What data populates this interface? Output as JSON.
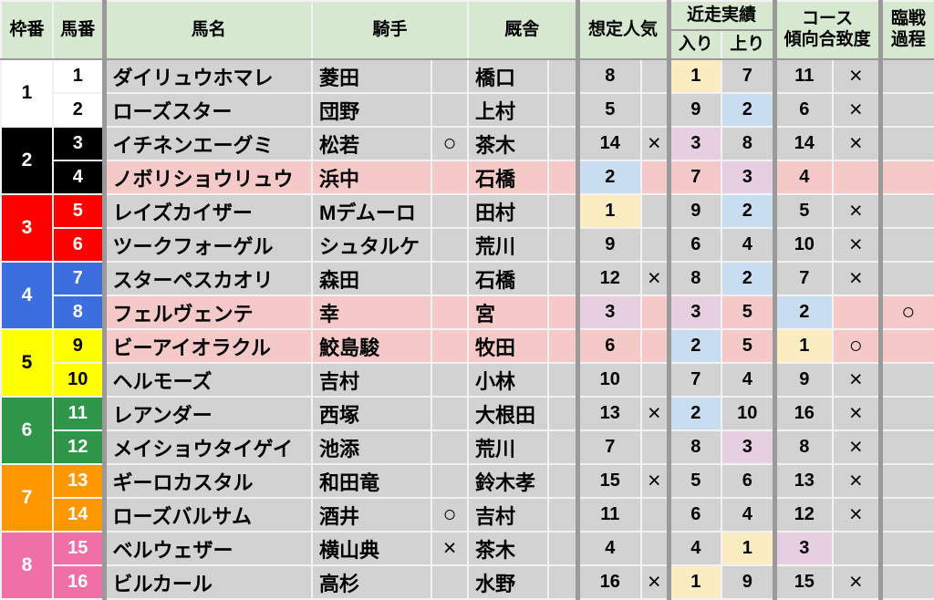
{
  "colors": {
    "header_bg": "#d7e8d1",
    "cell_bg": "#d2d2d2",
    "pink_row": "#f4c9c8",
    "rank1": "#fcecc2",
    "rank2": "#c9ddf0",
    "rank3": "#e5cfe0",
    "divider": "#9a9a9a"
  },
  "header": {
    "frame": "枠番",
    "horse_no": "馬番",
    "horse_name": "馬名",
    "jockey": "騎手",
    "stable": "厩舎",
    "popularity": "想定人気",
    "recent": "近走実績",
    "recent_in": "入り",
    "recent_up": "上り",
    "course_line1": "コース",
    "course_line2": "傾向合致度",
    "prep_line1": "臨戦",
    "prep_line2": "過程"
  },
  "frames": [
    {
      "label": "1",
      "bg": "#ffffff",
      "fg": "#000000"
    },
    {
      "label": "2",
      "bg": "#000000",
      "fg": "#ffffff"
    },
    {
      "label": "3",
      "bg": "#ff0000",
      "fg": "#ffffff"
    },
    {
      "label": "4",
      "bg": "#3b6fe0",
      "fg": "#ffffff"
    },
    {
      "label": "5",
      "bg": "#ffff00",
      "fg": "#000000"
    },
    {
      "label": "6",
      "bg": "#2e9549",
      "fg": "#ffffff"
    },
    {
      "label": "7",
      "bg": "#ff9800",
      "fg": "#ffffff"
    },
    {
      "label": "8",
      "bg": "#ef6fa6",
      "fg": "#ffffff"
    }
  ],
  "rows": [
    {
      "frame": 1,
      "horse_no": "1",
      "horse_name": "ダイリュウホマレ",
      "jockey": "菱田",
      "jockey_mark": "",
      "stable": "橋口",
      "stable_mark": "",
      "popularity": 8,
      "popularity_mark": "",
      "recent_in": 1,
      "recent_up": 7,
      "course_match": 11,
      "course_mark": "×",
      "race_prep": "",
      "pink_row": false
    },
    {
      "frame": 1,
      "horse_no": "2",
      "horse_name": "ローズスター",
      "jockey": "団野",
      "jockey_mark": "",
      "stable": "上村",
      "stable_mark": "",
      "popularity": 5,
      "popularity_mark": "",
      "recent_in": 9,
      "recent_up": 2,
      "course_match": 6,
      "course_mark": "×",
      "race_prep": "",
      "pink_row": false
    },
    {
      "frame": 2,
      "horse_no": "3",
      "horse_name": "イチネンエーグミ",
      "jockey": "松若",
      "jockey_mark": "○",
      "stable": "茶木",
      "stable_mark": "",
      "popularity": 14,
      "popularity_mark": "×",
      "recent_in": 3,
      "recent_up": 8,
      "course_match": 14,
      "course_mark": "×",
      "race_prep": "",
      "pink_row": false
    },
    {
      "frame": 2,
      "horse_no": "4",
      "horse_name": "ノボリショウリュウ",
      "jockey": "浜中",
      "jockey_mark": "",
      "stable": "石橋",
      "stable_mark": "",
      "popularity": 2,
      "popularity_mark": "",
      "recent_in": 7,
      "recent_up": 3,
      "course_match": 4,
      "course_mark": "",
      "race_prep": "",
      "pink_row": true
    },
    {
      "frame": 3,
      "horse_no": "5",
      "horse_name": "レイズカイザー",
      "jockey": "Mデムーロ",
      "jockey_mark": "",
      "stable": "田村",
      "stable_mark": "",
      "popularity": 1,
      "popularity_mark": "",
      "recent_in": 9,
      "recent_up": 2,
      "course_match": 5,
      "course_mark": "×",
      "race_prep": "",
      "pink_row": false
    },
    {
      "frame": 3,
      "horse_no": "6",
      "horse_name": "ツークフォーゲル",
      "jockey": "シュタルケ",
      "jockey_mark": "",
      "stable": "荒川",
      "stable_mark": "",
      "popularity": 9,
      "popularity_mark": "",
      "recent_in": 6,
      "recent_up": 4,
      "course_match": 10,
      "course_mark": "×",
      "race_prep": "",
      "pink_row": false
    },
    {
      "frame": 4,
      "horse_no": "7",
      "horse_name": "スターペスカオリ",
      "jockey": "森田",
      "jockey_mark": "",
      "stable": "石橋",
      "stable_mark": "",
      "popularity": 12,
      "popularity_mark": "×",
      "recent_in": 8,
      "recent_up": 2,
      "course_match": 7,
      "course_mark": "×",
      "race_prep": "",
      "pink_row": false
    },
    {
      "frame": 4,
      "horse_no": "8",
      "horse_name": "フェルヴェンテ",
      "jockey": "幸",
      "jockey_mark": "",
      "stable": "宮",
      "stable_mark": "",
      "popularity": 3,
      "popularity_mark": "",
      "recent_in": 3,
      "recent_up": 5,
      "course_match": 2,
      "course_mark": "",
      "race_prep": "○",
      "pink_row": true
    },
    {
      "frame": 5,
      "horse_no": "9",
      "horse_name": "ビーアイオラクル",
      "jockey": "鮫島駿",
      "jockey_mark": "",
      "stable": "牧田",
      "stable_mark": "",
      "popularity": 6,
      "popularity_mark": "",
      "recent_in": 2,
      "recent_up": 5,
      "course_match": 1,
      "course_mark": "○",
      "race_prep": "",
      "pink_row": true
    },
    {
      "frame": 5,
      "horse_no": "10",
      "horse_name": "ヘルモーズ",
      "jockey": "吉村",
      "jockey_mark": "",
      "stable": "小林",
      "stable_mark": "",
      "popularity": 10,
      "popularity_mark": "",
      "recent_in": 7,
      "recent_up": 4,
      "course_match": 9,
      "course_mark": "×",
      "race_prep": "",
      "pink_row": false
    },
    {
      "frame": 6,
      "horse_no": "11",
      "horse_name": "レアンダー",
      "jockey": "西塚",
      "jockey_mark": "",
      "stable": "大根田",
      "stable_mark": "",
      "popularity": 13,
      "popularity_mark": "×",
      "recent_in": 2,
      "recent_up": 10,
      "course_match": 16,
      "course_mark": "×",
      "race_prep": "",
      "pink_row": false
    },
    {
      "frame": 6,
      "horse_no": "12",
      "horse_name": "メイショウタイゲイ",
      "jockey": "池添",
      "jockey_mark": "",
      "stable": "荒川",
      "stable_mark": "",
      "popularity": 7,
      "popularity_mark": "",
      "recent_in": 8,
      "recent_up": 3,
      "course_match": 8,
      "course_mark": "×",
      "race_prep": "",
      "pink_row": false
    },
    {
      "frame": 7,
      "horse_no": "13",
      "horse_name": "ギーロカスタル",
      "jockey": "和田竜",
      "jockey_mark": "",
      "stable": "鈴木孝",
      "stable_mark": "",
      "popularity": 15,
      "popularity_mark": "×",
      "recent_in": 5,
      "recent_up": 6,
      "course_match": 13,
      "course_mark": "×",
      "race_prep": "",
      "pink_row": false
    },
    {
      "frame": 7,
      "horse_no": "14",
      "horse_name": "ローズバルサム",
      "jockey": "酒井",
      "jockey_mark": "○",
      "stable": "吉村",
      "stable_mark": "",
      "popularity": 11,
      "popularity_mark": "",
      "recent_in": 6,
      "recent_up": 4,
      "course_match": 12,
      "course_mark": "×",
      "race_prep": "",
      "pink_row": false
    },
    {
      "frame": 8,
      "horse_no": "15",
      "horse_name": "ベルウェザー",
      "jockey": "横山典",
      "jockey_mark": "×",
      "stable": "茶木",
      "stable_mark": "",
      "popularity": 4,
      "popularity_mark": "",
      "recent_in": 4,
      "recent_up": 1,
      "course_match": 3,
      "course_mark": "",
      "race_prep": "",
      "pink_row": false
    },
    {
      "frame": 8,
      "horse_no": "16",
      "horse_name": "ビルカール",
      "jockey": "高杉",
      "jockey_mark": "",
      "stable": "水野",
      "stable_mark": "",
      "popularity": 16,
      "popularity_mark": "×",
      "recent_in": 1,
      "recent_up": 9,
      "course_match": 15,
      "course_mark": "×",
      "race_prep": "",
      "pink_row": false
    }
  ]
}
